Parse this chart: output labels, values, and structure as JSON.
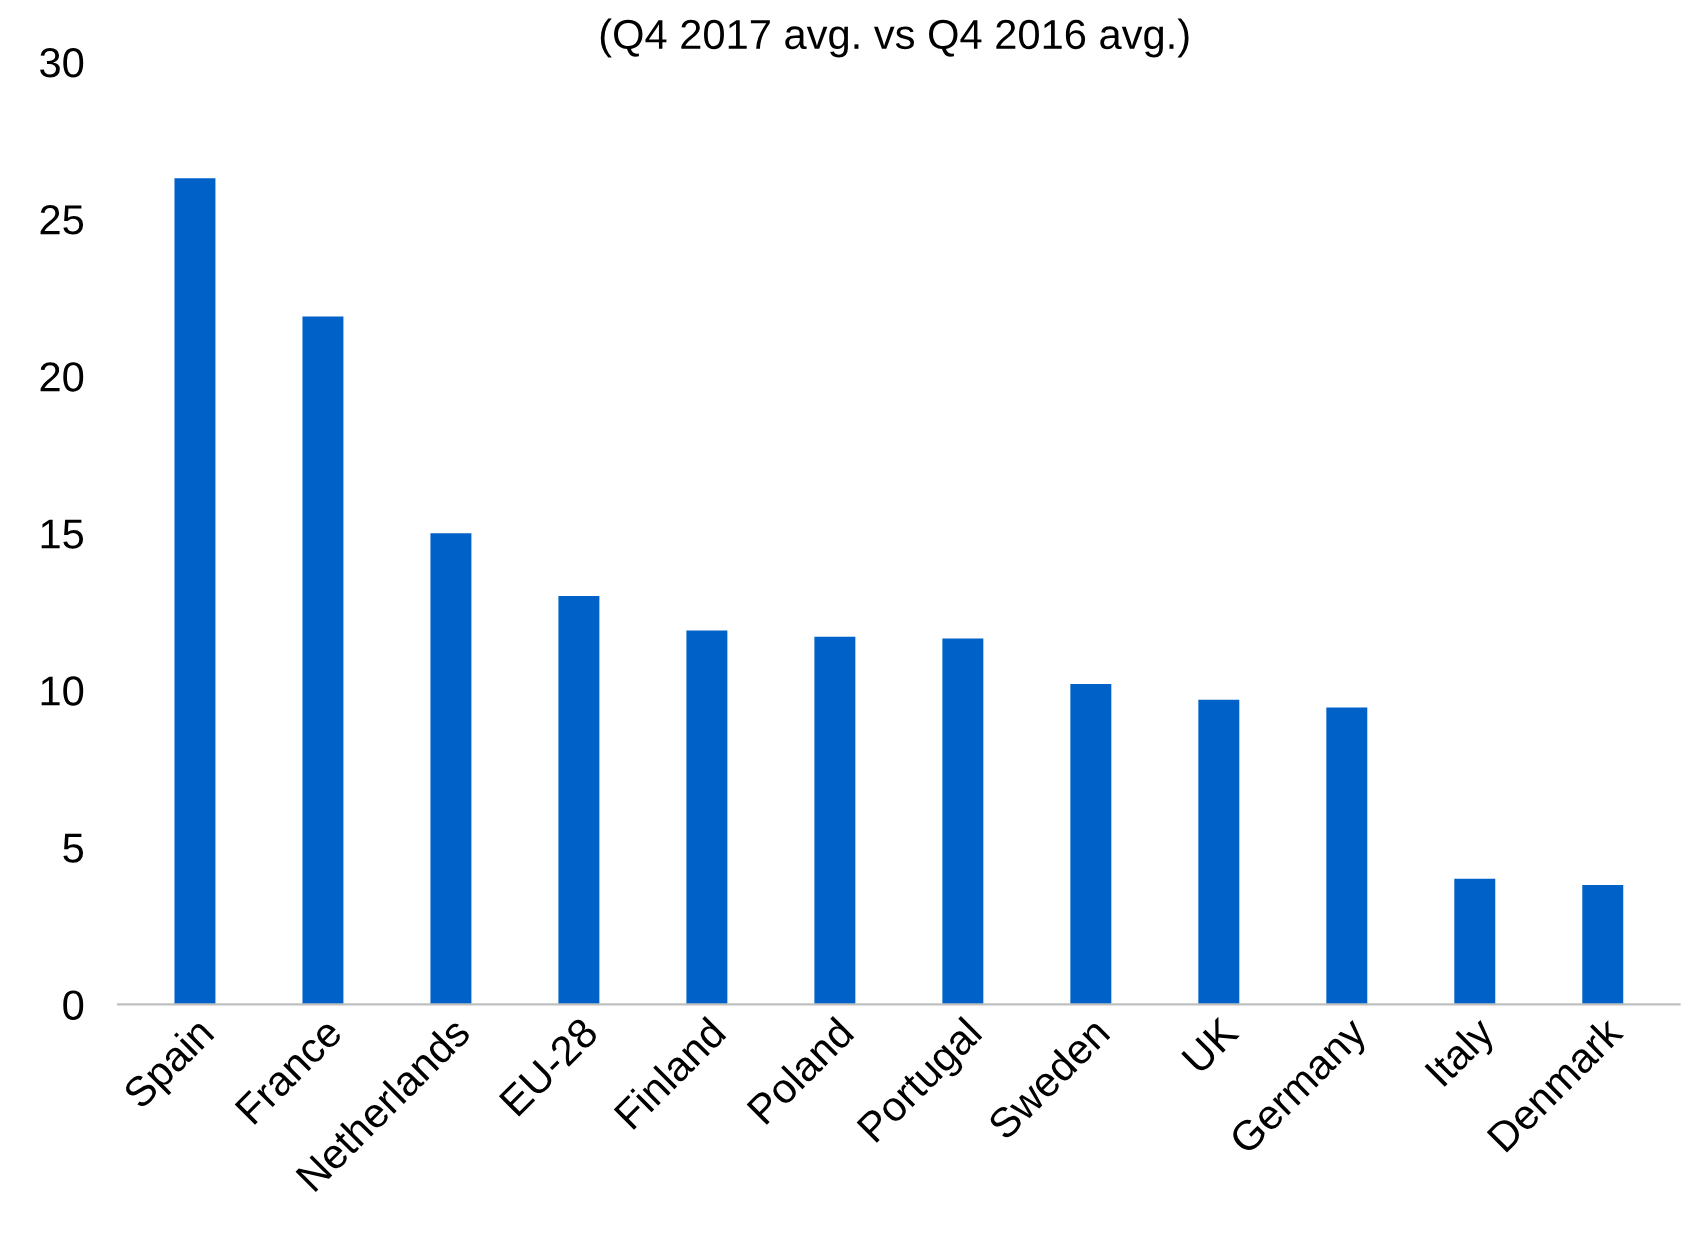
{
  "chart_data": {
    "type": "bar",
    "subtitle": "(Q4 2017 avg. vs Q4 2016 avg.)",
    "categories": [
      "Spain",
      "France",
      "Netherlands",
      "EU-28",
      "Finland",
      "Poland",
      "Portugal",
      "Sweden",
      "UK",
      "Germany",
      "Italy",
      "Denmark"
    ],
    "values": [
      26.3,
      21.9,
      15.0,
      13.0,
      11.9,
      11.7,
      11.65,
      10.2,
      9.7,
      9.45,
      4.0,
      3.8
    ],
    "color": "#0062c8",
    "ylim": [
      0,
      30
    ],
    "yticks": [
      0,
      5,
      10,
      15,
      20,
      25,
      30
    ],
    "grid": false,
    "legend": false
  }
}
